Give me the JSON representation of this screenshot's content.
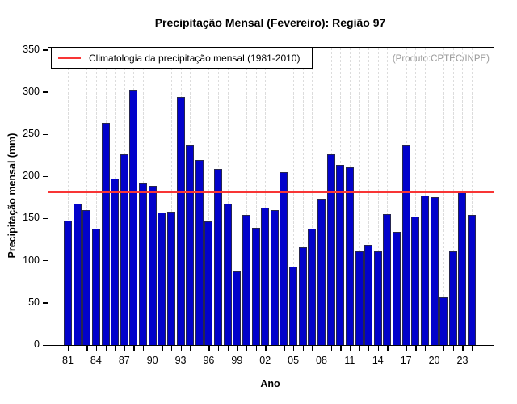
{
  "title": "Precipitação Mensal (Fevereiro): Região 97",
  "product_note": "(Produto:CPTEC/INPE)",
  "legend": {
    "label": "Climatologia da precipitação mensal (1981-2010)",
    "line_color": "#f83535"
  },
  "x_axis": {
    "label": "Ano",
    "tick_labels": [
      "81",
      "84",
      "87",
      "90",
      "93",
      "96",
      "99",
      "02",
      "05",
      "08",
      "11",
      "14",
      "17",
      "20",
      "23"
    ]
  },
  "y_axis": {
    "label": "Precipitação mensal (mm)",
    "ticks": [
      0,
      50,
      100,
      150,
      200,
      250,
      300,
      350
    ]
  },
  "chart_data": {
    "type": "bar",
    "title": "Precipitação Mensal (Fevereiro): Região 97",
    "xlabel": "Ano",
    "ylabel": "Precipitação mensal (mm)",
    "ylim": [
      0,
      350
    ],
    "grid": "vertical-dashed",
    "legend_position": "top-left",
    "bar_color": "#0202cb",
    "climatology_line": {
      "value": 181,
      "color": "#f83535",
      "label": "Climatologia da precipitação mensal (1981-2010)"
    },
    "categories": [
      "1981",
      "1982",
      "1983",
      "1984",
      "1985",
      "1986",
      "1987",
      "1988",
      "1989",
      "1990",
      "1991",
      "1992",
      "1993",
      "1994",
      "1995",
      "1996",
      "1997",
      "1998",
      "1999",
      "2000",
      "2001",
      "2002",
      "2003",
      "2004",
      "2005",
      "2006",
      "2007",
      "2008",
      "2009",
      "2010",
      "2011",
      "2012",
      "2013",
      "2014",
      "2015",
      "2016",
      "2017",
      "2018",
      "2019",
      "2020",
      "2021",
      "2022",
      "2023",
      "2024"
    ],
    "values": [
      148,
      168,
      160,
      138,
      264,
      197,
      226,
      302,
      192,
      189,
      157,
      158,
      294,
      237,
      219,
      147,
      209,
      168,
      87,
      154,
      139,
      163,
      160,
      205,
      93,
      116,
      138,
      173,
      226,
      214,
      211,
      111,
      119,
      111,
      155,
      134,
      237,
      152,
      177,
      175,
      57,
      111,
      181,
      154
    ]
  }
}
